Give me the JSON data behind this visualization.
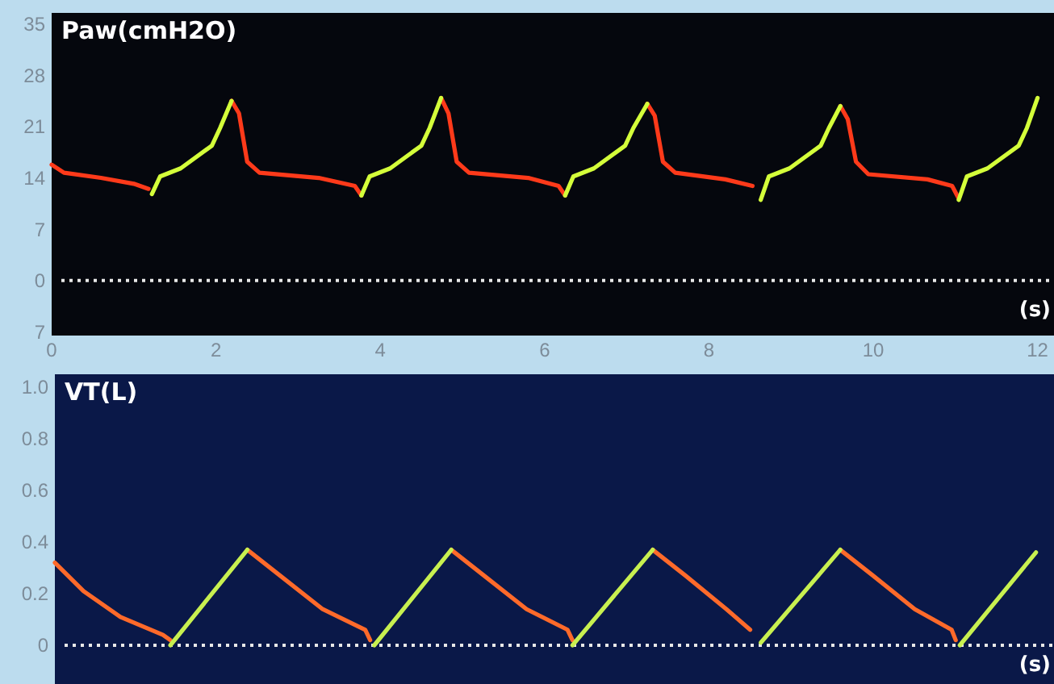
{
  "chart_data": [
    {
      "type": "line",
      "title": "Paw(cmH2O)",
      "xlabel": "(s)",
      "xlim": [
        0,
        12.2
      ],
      "xticks": [
        0,
        2,
        4,
        6,
        8,
        10,
        12
      ],
      "ylim": [
        -7.5,
        36.5
      ],
      "yticks": [
        35,
        28,
        21,
        14,
        7,
        0,
        {
          "value": -7,
          "label": "7"
        }
      ],
      "ref_lines": [
        {
          "axis": "y",
          "value": 0,
          "line_style": "dotted",
          "color": "#e8e8e8"
        }
      ],
      "series": [
        {
          "color": "#ff3a1a",
          "x": [
            0,
            0.15,
            0.6,
            1.0,
            1.18
          ],
          "values": [
            15.8,
            14.7,
            14,
            13.2,
            12.5
          ]
        },
        {
          "color": "#ff3a1a",
          "x": [
            2.19,
            2.28,
            2.38,
            2.53,
            3.25,
            3.69,
            3.77
          ],
          "values": [
            24.5,
            22.8,
            16.2,
            14.7,
            14,
            12.9,
            11.6
          ]
        },
        {
          "color": "#ff3a1a",
          "x": [
            4.74,
            4.83,
            4.93,
            5.08,
            5.8,
            6.17,
            6.25
          ],
          "values": [
            24.9,
            22.8,
            16.2,
            14.7,
            14,
            12.9,
            11.6
          ]
        },
        {
          "color": "#ff3a1a",
          "x": [
            7.25,
            7.34,
            7.44,
            7.59,
            8.2,
            8.53
          ],
          "values": [
            24.1,
            22.5,
            16.2,
            14.7,
            13.8,
            12.9
          ]
        },
        {
          "color": "#ff3a1a",
          "x": [
            9.6,
            9.69,
            9.79,
            9.94,
            10.66,
            10.96,
            11.04
          ],
          "values": [
            23.8,
            22,
            16.2,
            14.5,
            13.8,
            12.9,
            11.2
          ]
        },
        {
          "color": "#d4ff3a",
          "x": [
            1.22,
            1.32,
            1.57,
            1.95,
            2.05,
            2.19
          ],
          "values": [
            11.8,
            14.2,
            15.3,
            18.4,
            20.8,
            24.5
          ]
        },
        {
          "color": "#d4ff3a",
          "x": [
            3.77,
            3.87,
            4.12,
            4.5,
            4.6,
            4.74
          ],
          "values": [
            11.6,
            14.2,
            15.3,
            18.4,
            20.8,
            24.9
          ]
        },
        {
          "color": "#d4ff3a",
          "x": [
            6.25,
            6.35,
            6.6,
            6.98,
            7.08,
            7.25
          ],
          "values": [
            11.6,
            14.2,
            15.3,
            18.4,
            20.8,
            24.1
          ]
        },
        {
          "color": "#d4ff3a",
          "x": [
            8.63,
            8.73,
            8.98,
            9.36,
            9.46,
            9.6
          ],
          "values": [
            11,
            14.2,
            15.3,
            18.4,
            20.8,
            23.8
          ]
        },
        {
          "color": "#d4ff3a",
          "x": [
            11.04,
            11.14,
            11.39,
            11.77,
            11.87,
            12.0
          ],
          "values": [
            11,
            14.2,
            15.3,
            18.4,
            20.8,
            24.9
          ]
        }
      ]
    },
    {
      "type": "line",
      "title": "VT(L)",
      "xlabel": "(s)",
      "tick_labels": "y",
      "xlim": [
        0,
        12.2
      ],
      "ylim": [
        -0.15,
        1.05
      ],
      "yticks": [
        {
          "value": 1,
          "label": "1.0"
        },
        0.8,
        0.6,
        0.4,
        0.2,
        0
      ],
      "ref_lines": [
        {
          "axis": "y",
          "value": 0,
          "line_style": "dotted",
          "color": "#e8e8e8"
        }
      ],
      "series": [
        {
          "color": "#ff6a2a",
          "x": [
            0,
            0.35,
            0.8,
            1.32,
            1.41
          ],
          "values": [
            0.32,
            0.21,
            0.11,
            0.04,
            0.02
          ]
        },
        {
          "color": "#ff6a2a",
          "x": [
            2.35,
            2.75,
            3.27,
            3.79,
            3.85
          ],
          "values": [
            0.37,
            0.27,
            0.14,
            0.06,
            0.02
          ]
        },
        {
          "color": "#ff6a2a",
          "x": [
            4.84,
            5.24,
            5.76,
            6.26,
            6.32
          ],
          "values": [
            0.37,
            0.27,
            0.14,
            0.06,
            0.02
          ]
        },
        {
          "color": "#ff6a2a",
          "x": [
            7.3,
            7.7,
            8.2,
            8.49
          ],
          "values": [
            0.37,
            0.27,
            0.14,
            0.06
          ]
        },
        {
          "color": "#ff6a2a",
          "x": [
            9.59,
            9.99,
            10.5,
            10.95,
            11.0
          ],
          "values": [
            0.37,
            0.27,
            0.14,
            0.06,
            0.02
          ]
        },
        {
          "color": "#c8f050",
          "x": [
            1.41,
            2.35
          ],
          "values": [
            0,
            0.37
          ]
        },
        {
          "color": "#c8f050",
          "x": [
            3.9,
            4.84
          ],
          "values": [
            0,
            0.37
          ]
        },
        {
          "color": "#c8f050",
          "x": [
            6.32,
            7.3
          ],
          "values": [
            0,
            0.37
          ]
        },
        {
          "color": "#c8f050",
          "x": [
            8.62,
            9.59
          ],
          "values": [
            0.01,
            0.37
          ]
        },
        {
          "color": "#c8f050",
          "x": [
            11.05,
            11.98
          ],
          "values": [
            0,
            0.36
          ]
        }
      ]
    }
  ]
}
